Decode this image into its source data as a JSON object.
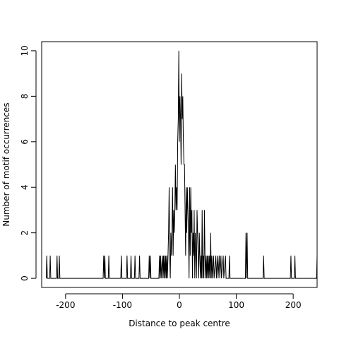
{
  "chart_data": {
    "type": "line",
    "title": "",
    "xlabel": "Distance to peak centre",
    "ylabel": "Number of motif occurrences",
    "xlim": [
      -242,
      242
    ],
    "ylim": [
      -0.4,
      10.4
    ],
    "xticks": [
      -200,
      -100,
      0,
      100,
      200
    ],
    "yticks": [
      0,
      2,
      4,
      6,
      8,
      10
    ],
    "xtick_labels": [
      "-200",
      "-100",
      "0",
      "100",
      "200"
    ],
    "ytick_labels": [
      "0",
      "2",
      "4",
      "6",
      "8",
      "10"
    ],
    "grid": false,
    "legend": "none",
    "series": [
      {
        "color": "#000000",
        "points": [
          [
            -234,
            0
          ],
          [
            -233,
            1
          ],
          [
            -232,
            0
          ],
          [
            -228,
            0
          ],
          [
            -227,
            1
          ],
          [
            -226,
            0
          ],
          [
            -216,
            0
          ],
          [
            -215,
            1
          ],
          [
            -214,
            0
          ],
          [
            -212,
            0
          ],
          [
            -211,
            1
          ],
          [
            -210,
            0
          ],
          [
            -134,
            0
          ],
          [
            -133,
            1
          ],
          [
            -132,
            0
          ],
          [
            -131,
            1
          ],
          [
            -130,
            0
          ],
          [
            -125,
            0
          ],
          [
            -124,
            1
          ],
          [
            -123,
            0
          ],
          [
            -103,
            0
          ],
          [
            -102,
            1
          ],
          [
            -101,
            0
          ],
          [
            -93,
            0
          ],
          [
            -92,
            1
          ],
          [
            -91,
            0
          ],
          [
            -86,
            0
          ],
          [
            -85,
            1
          ],
          [
            -84,
            0
          ],
          [
            -79,
            0
          ],
          [
            -78,
            1
          ],
          [
            -77,
            0
          ],
          [
            -71,
            0
          ],
          [
            -70,
            1
          ],
          [
            -69,
            0
          ],
          [
            -54,
            0
          ],
          [
            -53,
            1
          ],
          [
            -52,
            0
          ],
          [
            -51,
            1
          ],
          [
            -50,
            0
          ],
          [
            -36,
            0
          ],
          [
            -35,
            1
          ],
          [
            -34,
            0
          ],
          [
            -33,
            1
          ],
          [
            -32,
            0
          ],
          [
            -30,
            1
          ],
          [
            -29,
            0
          ],
          [
            -28,
            1
          ],
          [
            -27,
            0
          ],
          [
            -26,
            1
          ],
          [
            -25,
            0
          ],
          [
            -24,
            1
          ],
          [
            -23,
            0
          ],
          [
            -22,
            1
          ],
          [
            -21,
            0
          ],
          [
            -20,
            1
          ],
          [
            -19,
            2
          ],
          [
            -18,
            4
          ],
          [
            -17,
            1
          ],
          [
            -16,
            0
          ],
          [
            -15,
            2
          ],
          [
            -14,
            1
          ],
          [
            -13,
            2
          ],
          [
            -12,
            4
          ],
          [
            -11,
            1
          ],
          [
            -10,
            3
          ],
          [
            -9,
            2
          ],
          [
            -8,
            3
          ],
          [
            -7,
            5
          ],
          [
            -6,
            3
          ],
          [
            -5,
            4
          ],
          [
            -4,
            3
          ],
          [
            -3,
            6
          ],
          [
            -2,
            7
          ],
          [
            -1,
            10
          ],
          [
            0,
            6
          ],
          [
            1,
            8
          ],
          [
            2,
            7
          ],
          [
            3,
            5
          ],
          [
            4,
            9
          ],
          [
            5,
            7
          ],
          [
            6,
            8
          ],
          [
            7,
            6
          ],
          [
            8,
            5
          ],
          [
            9,
            5
          ],
          [
            10,
            3
          ],
          [
            11,
            1
          ],
          [
            12,
            4
          ],
          [
            13,
            2
          ],
          [
            14,
            4
          ],
          [
            15,
            3
          ],
          [
            16,
            2
          ],
          [
            17,
            0
          ],
          [
            18,
            4
          ],
          [
            19,
            1
          ],
          [
            20,
            4
          ],
          [
            21,
            2
          ],
          [
            22,
            3
          ],
          [
            23,
            0
          ],
          [
            24,
            2
          ],
          [
            25,
            1
          ],
          [
            26,
            3
          ],
          [
            27,
            0
          ],
          [
            28,
            2
          ],
          [
            29,
            1
          ],
          [
            30,
            0
          ],
          [
            31,
            3
          ],
          [
            32,
            2
          ],
          [
            33,
            1
          ],
          [
            34,
            0
          ],
          [
            35,
            2
          ],
          [
            36,
            1
          ],
          [
            37,
            0
          ],
          [
            38,
            1
          ],
          [
            39,
            0
          ],
          [
            40,
            3
          ],
          [
            41,
            0
          ],
          [
            42,
            1
          ],
          [
            43,
            0
          ],
          [
            44,
            3
          ],
          [
            45,
            1
          ],
          [
            46,
            0
          ],
          [
            47,
            1
          ],
          [
            48,
            0
          ],
          [
            49,
            1
          ],
          [
            50,
            0
          ],
          [
            51,
            1
          ],
          [
            52,
            0
          ],
          [
            53,
            1
          ],
          [
            54,
            0
          ],
          [
            55,
            2
          ],
          [
            56,
            0
          ],
          [
            57,
            1
          ],
          [
            58,
            0
          ],
          [
            60,
            1
          ],
          [
            61,
            0
          ],
          [
            64,
            1
          ],
          [
            65,
            0
          ],
          [
            67,
            1
          ],
          [
            68,
            0
          ],
          [
            70,
            1
          ],
          [
            71,
            0
          ],
          [
            73,
            1
          ],
          [
            74,
            0
          ],
          [
            77,
            1
          ],
          [
            78,
            0
          ],
          [
            81,
            1
          ],
          [
            82,
            0
          ],
          [
            87,
            0
          ],
          [
            88,
            1
          ],
          [
            89,
            0
          ],
          [
            116,
            0
          ],
          [
            117,
            2
          ],
          [
            118,
            0
          ],
          [
            119,
            2
          ],
          [
            120,
            0
          ],
          [
            147,
            0
          ],
          [
            148,
            1
          ],
          [
            149,
            0
          ],
          [
            195,
            0
          ],
          [
            196,
            1
          ],
          [
            197,
            0
          ],
          [
            202,
            0
          ],
          [
            203,
            1
          ],
          [
            204,
            0
          ],
          [
            241,
            0
          ],
          [
            242,
            1
          ]
        ]
      }
    ]
  }
}
